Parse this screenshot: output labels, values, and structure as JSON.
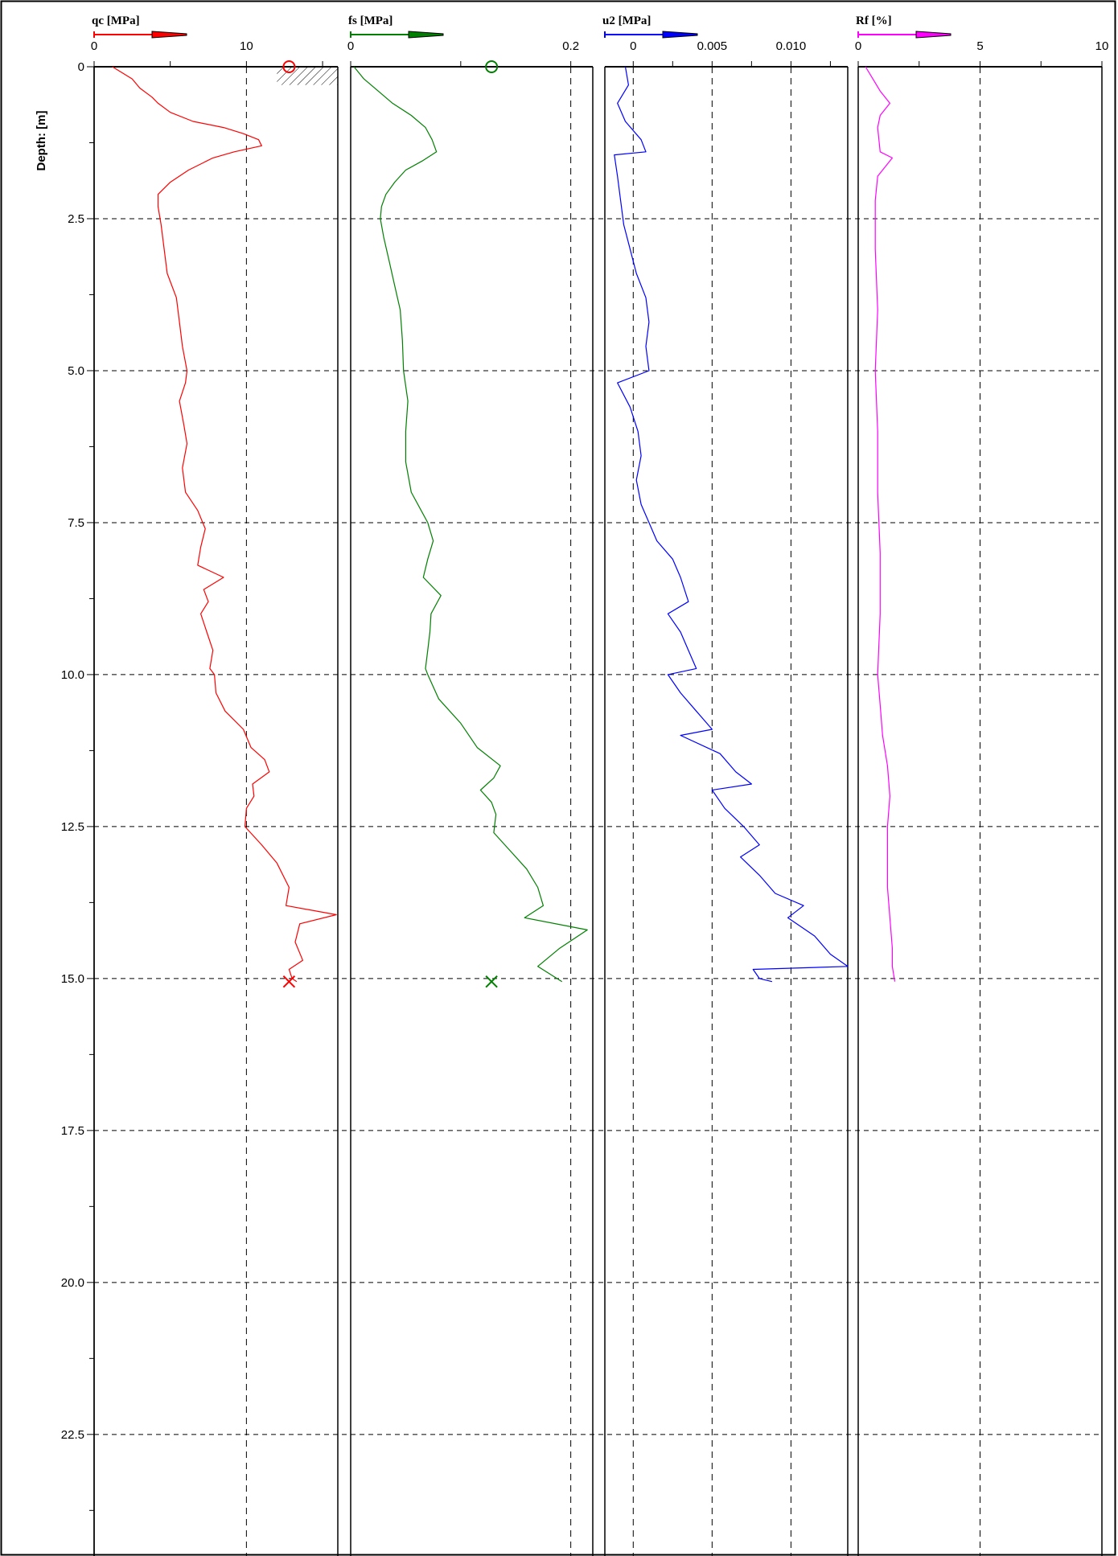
{
  "chart_data": {
    "type": "line",
    "title": "",
    "ylabel": "Depth: [m]",
    "y_inverted": true,
    "ylim": [
      0,
      24.5
    ],
    "y_ticks": [
      "0",
      "2.5",
      "5.0",
      "7.5",
      "10.0",
      "12.5",
      "15.0",
      "17.5",
      "20.0",
      "22.5"
    ],
    "y_tick_values": [
      0,
      2.5,
      5.0,
      7.5,
      10.0,
      12.5,
      15.0,
      17.5,
      20.0,
      22.5
    ],
    "grid": true,
    "tracks": [
      {
        "name": "qc [MPa]",
        "color": "#ff0000",
        "xlim": [
          0,
          16
        ],
        "x_ticks": [
          "0",
          "10"
        ],
        "x_tick_values": [
          0,
          10
        ],
        "minor_ticks": [
          5,
          15
        ],
        "start_marker": {
          "symbol": "circle",
          "x": 12.8,
          "depth": 0
        },
        "end_marker": {
          "symbol": "cross",
          "x": 12.8,
          "depth": 15.05
        },
        "hatch_zone": {
          "x_from": 12.0,
          "x_to": 16.0,
          "depth_from": 0,
          "depth_to": 0.3
        },
        "series": {
          "depth": [
            0,
            0.2,
            0.35,
            0.5,
            0.6,
            0.75,
            0.9,
            1.0,
            1.1,
            1.2,
            1.3,
            1.4,
            1.5,
            1.7,
            1.9,
            2.1,
            2.3,
            2.6,
            3.0,
            3.4,
            3.8,
            4.2,
            4.6,
            5.0,
            5.2,
            5.5,
            5.9,
            6.2,
            6.6,
            7.0,
            7.3,
            7.6,
            7.9,
            8.2,
            8.4,
            8.6,
            8.8,
            9.0,
            9.3,
            9.6,
            9.9,
            10.0,
            10.3,
            10.6,
            10.9,
            11.2,
            11.4,
            11.6,
            11.8,
            12.0,
            12.2,
            12.5,
            12.8,
            13.1,
            13.5,
            13.8,
            13.95,
            14.1,
            14.4,
            14.7,
            14.85,
            15.0,
            15.05
          ],
          "values": [
            1.2,
            2.5,
            3.0,
            3.8,
            4.2,
            5.0,
            6.5,
            8.5,
            9.8,
            10.8,
            11.0,
            9.2,
            7.8,
            6.2,
            5.0,
            4.2,
            4.2,
            4.4,
            4.6,
            4.8,
            5.4,
            5.6,
            5.8,
            6.1,
            6.0,
            5.6,
            5.9,
            6.1,
            5.8,
            6.0,
            6.8,
            7.3,
            7.0,
            6.8,
            8.5,
            7.2,
            7.5,
            7.0,
            7.4,
            7.8,
            7.6,
            7.9,
            8.0,
            8.6,
            9.8,
            10.3,
            11.2,
            11.5,
            10.4,
            10.5,
            10.0,
            9.9,
            11.0,
            12.0,
            12.8,
            12.6,
            15.9,
            13.5,
            13.2,
            13.7,
            12.8,
            13.0,
            13.3
          ]
        }
      },
      {
        "name": "fs [MPa]",
        "color": "#008000",
        "xlim": [
          0,
          0.22
        ],
        "x_ticks": [
          "0",
          "0.2"
        ],
        "x_tick_values": [
          0,
          0.2
        ],
        "minor_ticks": [
          0.1
        ],
        "start_marker": {
          "symbol": "circle",
          "x": 0.128,
          "depth": 0
        },
        "end_marker": {
          "symbol": "cross",
          "x": 0.128,
          "depth": 15.05
        },
        "series": {
          "depth": [
            0,
            0.2,
            0.4,
            0.6,
            0.8,
            1.0,
            1.2,
            1.4,
            1.55,
            1.7,
            1.9,
            2.1,
            2.3,
            2.5,
            2.8,
            3.2,
            3.6,
            4.0,
            4.5,
            5.0,
            5.5,
            6.0,
            6.5,
            7.0,
            7.5,
            7.8,
            8.1,
            8.4,
            8.7,
            9.0,
            9.3,
            9.6,
            9.9,
            10.0,
            10.4,
            10.8,
            11.2,
            11.5,
            11.7,
            11.9,
            12.1,
            12.3,
            12.6,
            12.9,
            13.2,
            13.5,
            13.8,
            14.0,
            14.2,
            14.5,
            14.8,
            15.05
          ],
          "values": [
            0.003,
            0.012,
            0.025,
            0.038,
            0.055,
            0.068,
            0.074,
            0.078,
            0.065,
            0.05,
            0.04,
            0.032,
            0.028,
            0.027,
            0.03,
            0.035,
            0.04,
            0.045,
            0.047,
            0.048,
            0.052,
            0.05,
            0.05,
            0.055,
            0.07,
            0.075,
            0.07,
            0.066,
            0.082,
            0.073,
            0.072,
            0.07,
            0.068,
            0.07,
            0.08,
            0.1,
            0.115,
            0.136,
            0.13,
            0.118,
            0.128,
            0.132,
            0.13,
            0.145,
            0.16,
            0.17,
            0.175,
            0.158,
            0.215,
            0.19,
            0.17,
            0.192
          ]
        }
      },
      {
        "name": "u2 [MPa]",
        "color": "#0000ff",
        "xlim": [
          -0.0018,
          0.0136
        ],
        "x_ticks": [
          "0",
          "0.005",
          "0.010"
        ],
        "x_tick_values": [
          0,
          0.005,
          0.01
        ],
        "minor_ticks": [
          0.0025,
          0.0075,
          0.0125
        ],
        "series": {
          "depth": [
            0,
            0.3,
            0.6,
            0.9,
            1.2,
            1.4,
            1.45,
            1.8,
            2.2,
            2.6,
            3.0,
            3.4,
            3.8,
            4.2,
            4.6,
            5.0,
            5.2,
            5.6,
            6.0,
            6.4,
            6.8,
            7.2,
            7.5,
            7.8,
            8.1,
            8.4,
            8.8,
            9.0,
            9.3,
            9.6,
            9.9,
            10.0,
            10.3,
            10.6,
            10.9,
            11.0,
            11.3,
            11.6,
            11.8,
            11.9,
            12.2,
            12.5,
            12.8,
            13.0,
            13.3,
            13.6,
            13.8,
            14.0,
            14.3,
            14.6,
            14.8,
            14.85,
            15.0,
            15.05
          ],
          "values": [
            -0.0005,
            -0.0003,
            -0.001,
            -0.0005,
            0.0005,
            0.0008,
            -0.0012,
            -0.001,
            -0.0008,
            -0.0006,
            -0.0002,
            0.0002,
            0.0008,
            0.001,
            0.0008,
            0.001,
            -0.001,
            -0.0002,
            0.0003,
            0.0005,
            0.0002,
            0.0005,
            0.001,
            0.0015,
            0.0025,
            0.003,
            0.0035,
            0.0022,
            0.003,
            0.0035,
            0.004,
            0.0022,
            0.003,
            0.004,
            0.005,
            0.003,
            0.0055,
            0.0065,
            0.0075,
            0.005,
            0.0058,
            0.007,
            0.008,
            0.0068,
            0.008,
            0.009,
            0.0108,
            0.0098,
            0.0115,
            0.0125,
            0.0136,
            0.0076,
            0.008,
            0.0088
          ]
        }
      },
      {
        "name": "Rf [%]",
        "color": "#ff00ff",
        "xlim": [
          0,
          10
        ],
        "x_ticks": [
          "0",
          "5",
          "10"
        ],
        "x_tick_values": [
          0,
          5,
          10
        ],
        "minor_ticks": [
          2.5,
          7.5
        ],
        "series": {
          "depth": [
            0,
            0.2,
            0.4,
            0.6,
            0.8,
            1.0,
            1.4,
            1.5,
            1.8,
            2.2,
            2.6,
            3.0,
            4.0,
            5.0,
            6.0,
            7.0,
            8.0,
            9.0,
            10.0,
            10.5,
            11.0,
            11.5,
            12.0,
            12.5,
            13.0,
            13.5,
            14.0,
            14.5,
            14.8,
            15.05
          ],
          "values": [
            0.3,
            0.6,
            0.9,
            1.3,
            0.9,
            0.8,
            0.9,
            1.4,
            0.8,
            0.7,
            0.7,
            0.7,
            0.8,
            0.7,
            0.8,
            0.8,
            0.9,
            0.9,
            0.8,
            0.9,
            1.0,
            1.2,
            1.3,
            1.2,
            1.2,
            1.2,
            1.3,
            1.4,
            1.4,
            1.5
          ]
        }
      }
    ]
  }
}
